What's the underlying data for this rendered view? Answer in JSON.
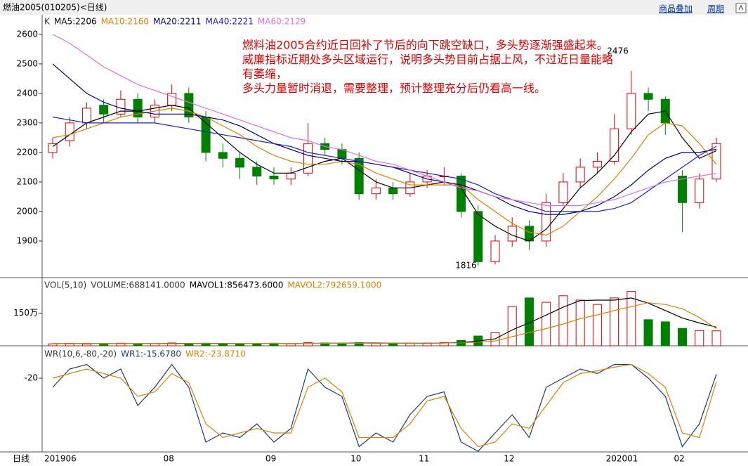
{
  "header": {
    "title": "燃油2005(010205)<日线)",
    "links": [
      "商品叠加",
      "周期"
    ],
    "period": "日线"
  },
  "chart_data": [
    {
      "type": "candlestick",
      "label": "K",
      "categories": [
        "201906",
        null,
        null,
        null,
        null,
        null,
        null,
        "08",
        null,
        null,
        null,
        null,
        null,
        "09",
        null,
        null,
        null,
        null,
        "10",
        null,
        null,
        null,
        "11",
        null,
        null,
        null,
        null,
        "12",
        null,
        null,
        null,
        null,
        null,
        "202001",
        null,
        null,
        null,
        "02",
        null,
        null
      ],
      "open": [
        2200,
        2240,
        2300,
        2360,
        2330,
        2380,
        2320,
        2360,
        2400,
        2320,
        2200,
        2180,
        2150,
        2120,
        2110,
        2130,
        2230,
        2210,
        2180,
        2060,
        2080,
        2060,
        2100,
        2120,
        2120,
        2000,
        1830,
        1900,
        1950,
        1900,
        2030,
        2100,
        2150,
        2170,
        2280,
        2400,
        2380,
        2120,
        2030,
        2110
      ],
      "high": [
        2250,
        2320,
        2370,
        2380,
        2410,
        2400,
        2380,
        2430,
        2420,
        2340,
        2230,
        2200,
        2170,
        2150,
        2150,
        2300,
        2250,
        2230,
        2200,
        2110,
        2100,
        2130,
        2140,
        2150,
        2130,
        2020,
        1920,
        1980,
        1970,
        2060,
        2130,
        2180,
        2200,
        2330,
        2476,
        2420,
        2390,
        2140,
        2130,
        2250
      ],
      "low": [
        2180,
        2220,
        2280,
        2300,
        2320,
        2300,
        2300,
        2340,
        2300,
        2170,
        2150,
        2110,
        2090,
        2090,
        2090,
        2120,
        2190,
        2160,
        2040,
        2040,
        2040,
        2050,
        2080,
        2090,
        1980,
        1816,
        1820,
        1880,
        1870,
        1880,
        2020,
        2080,
        2130,
        2160,
        2260,
        2340,
        2260,
        1930,
        2010,
        2100
      ],
      "close": [
        2230,
        2300,
        2350,
        2330,
        2380,
        2320,
        2360,
        2400,
        2320,
        2200,
        2180,
        2150,
        2120,
        2110,
        2130,
        2230,
        2210,
        2180,
        2060,
        2080,
        2060,
        2100,
        2120,
        2120,
        2000,
        1830,
        1900,
        1950,
        1900,
        2030,
        2100,
        2150,
        2170,
        2280,
        2400,
        2380,
        2300,
        2030,
        2110,
        2230
      ],
      "up_color": "#e00000",
      "down_color": "#008000",
      "series": [
        {
          "name": "MA5:2206",
          "color": "#000000",
          "values": [
            2220,
            2260,
            2300,
            2320,
            2340,
            2340,
            2350,
            2360,
            2350,
            2300,
            2250,
            2200,
            2160,
            2130,
            2130,
            2150,
            2170,
            2180,
            2140,
            2100,
            2080,
            2080,
            2090,
            2100,
            2080,
            1990,
            1950,
            1920,
            1900,
            1940,
            2010,
            2080,
            2130,
            2190,
            2270,
            2330,
            2340,
            2250,
            2180,
            2206
          ]
        },
        {
          "name": "MA10:2160",
          "color": "#e08000",
          "values": [
            2250,
            2260,
            2280,
            2300,
            2320,
            2330,
            2340,
            2350,
            2340,
            2320,
            2290,
            2260,
            2220,
            2190,
            2170,
            2160,
            2160,
            2170,
            2160,
            2130,
            2110,
            2090,
            2090,
            2090,
            2090,
            2040,
            2000,
            1960,
            1930,
            1920,
            1950,
            2000,
            2050,
            2110,
            2180,
            2260,
            2300,
            2290,
            2230,
            2160
          ]
        },
        {
          "name": "MA20:2211",
          "color": "#000080",
          "values": [
            2500,
            2450,
            2400,
            2370,
            2350,
            2340,
            2330,
            2330,
            2330,
            2320,
            2310,
            2290,
            2260,
            2230,
            2210,
            2190,
            2180,
            2170,
            2170,
            2160,
            2150,
            2130,
            2110,
            2100,
            2090,
            2070,
            2050,
            2020,
            2000,
            1990,
            1990,
            2000,
            2020,
            2050,
            2090,
            2140,
            2180,
            2200,
            2200,
            2211
          ]
        },
        {
          "name": "MA40:2221",
          "color": "#2020c0",
          "values": [
            2320,
            2310,
            2300,
            2300,
            2300,
            2300,
            2300,
            2290,
            2280,
            2270,
            2260,
            2250,
            2240,
            2230,
            2220,
            2200,
            2190,
            2180,
            2170,
            2160,
            2150,
            2140,
            2130,
            2120,
            2110,
            2090,
            2060,
            2040,
            2020,
            2000,
            2000,
            2000,
            2000,
            2010,
            2030,
            2070,
            2110,
            2150,
            2190,
            2221
          ]
        },
        {
          "name": "MA60:2129",
          "color": "#e070e0",
          "values": [
            2600,
            2570,
            2530,
            2490,
            2460,
            2430,
            2410,
            2390,
            2370,
            2350,
            2330,
            2310,
            2290,
            2270,
            2250,
            2240,
            2220,
            2210,
            2190,
            2170,
            2160,
            2140,
            2120,
            2100,
            2080,
            2070,
            2050,
            2040,
            2030,
            2020,
            2020,
            2020,
            2030,
            2040,
            2060,
            2080,
            2100,
            2110,
            2120,
            2129
          ]
        }
      ],
      "ylim": [
        1776,
        2664
      ],
      "yticks": [
        1900,
        2000,
        2100,
        2200,
        2300,
        2400,
        2500,
        2600
      ],
      "annotation": [
        "燃料油2005合约近日回补了节后的向下跳空缺口，多头势逐渐强盛起来。",
        "威廉指标近期处多头区域运行，说明多头势目前占据上风，不过近日量能略",
        "有萎缩，",
        "多头力量暂时消退，需要整理，预计整理充分后仍看高一线。"
      ],
      "annotation_color": "#e00000"
    },
    {
      "type": "bar",
      "label": "VOL(5,10)",
      "series": [
        {
          "name": "VOLUME:688141.0000",
          "mark": "bar",
          "values": [
            90000,
            110000,
            80000,
            100000,
            120000,
            90000,
            100000,
            130000,
            110000,
            120000,
            100000,
            90000,
            110000,
            120000,
            100000,
            150000,
            130000,
            120000,
            140000,
            110000,
            100000,
            120000,
            130000,
            150000,
            250000,
            450000,
            600000,
            1800000,
            2200000,
            2000000,
            2300000,
            2100000,
            1900000,
            2200000,
            2500000,
            1200000,
            1100000,
            800000,
            700000,
            688141
          ]
        },
        {
          "name": "MAVOL1:856473.6000",
          "mark": "line",
          "color": "#000000",
          "values": [
            100000,
            100000,
            100000,
            100000,
            100000,
            100000,
            100000,
            110000,
            110000,
            110000,
            110000,
            110000,
            110000,
            110000,
            110000,
            110000,
            120000,
            120000,
            130000,
            130000,
            120000,
            120000,
            120000,
            130000,
            150000,
            220000,
            320000,
            730000,
            1060000,
            1410000,
            1780000,
            2080000,
            2100000,
            2100000,
            2200000,
            1960000,
            1620000,
            1280000,
            1050000,
            856473.6
          ]
        },
        {
          "name": "MAVOL2:792659.1000",
          "mark": "line",
          "color": "#e08000",
          "values": [
            100000,
            100000,
            100000,
            100000,
            100000,
            100000,
            100000,
            100000,
            105000,
            105000,
            108000,
            110000,
            110000,
            110000,
            110000,
            110000,
            115000,
            115000,
            118000,
            120000,
            120000,
            120000,
            122000,
            125000,
            135000,
            170000,
            220000,
            420000,
            610000,
            790000,
            1000000,
            1250000,
            1420000,
            1620000,
            1800000,
            1980000,
            1900000,
            1700000,
            1300000,
            792659.1
          ]
        }
      ],
      "ylim": [
        0,
        3100000
      ],
      "yticks": [
        {
          "value": 1500000,
          "label": "150万"
        }
      ]
    },
    {
      "type": "line",
      "label": "WR(10,6,-80,-20)",
      "series": [
        {
          "name": "WR1:-15.6780",
          "color": "#1f3b73",
          "values": [
            -30,
            -10,
            -5,
            -20,
            -10,
            -50,
            -30,
            -5,
            -30,
            -90,
            -80,
            -85,
            -70,
            -90,
            -75,
            -10,
            -30,
            -40,
            -95,
            -80,
            -90,
            -60,
            -40,
            -35,
            -90,
            -100,
            -80,
            -60,
            -85,
            -30,
            -20,
            -10,
            -15,
            -5,
            -5,
            -20,
            -40,
            -95,
            -70,
            -15.678
          ]
        },
        {
          "name": "WR2:-23.8710",
          "color": "#e08000",
          "values": [
            -20,
            -15,
            -10,
            -15,
            -20,
            -40,
            -35,
            -15,
            -25,
            -70,
            -85,
            -80,
            -75,
            -80,
            -80,
            -30,
            -20,
            -35,
            -85,
            -85,
            -85,
            -70,
            -45,
            -40,
            -75,
            -95,
            -90,
            -70,
            -75,
            -50,
            -25,
            -15,
            -12,
            -8,
            -5,
            -15,
            -30,
            -80,
            -85,
            -23.871
          ]
        }
      ],
      "ylim": [
        -100,
        0
      ],
      "yticks": [
        -20
      ]
    }
  ]
}
